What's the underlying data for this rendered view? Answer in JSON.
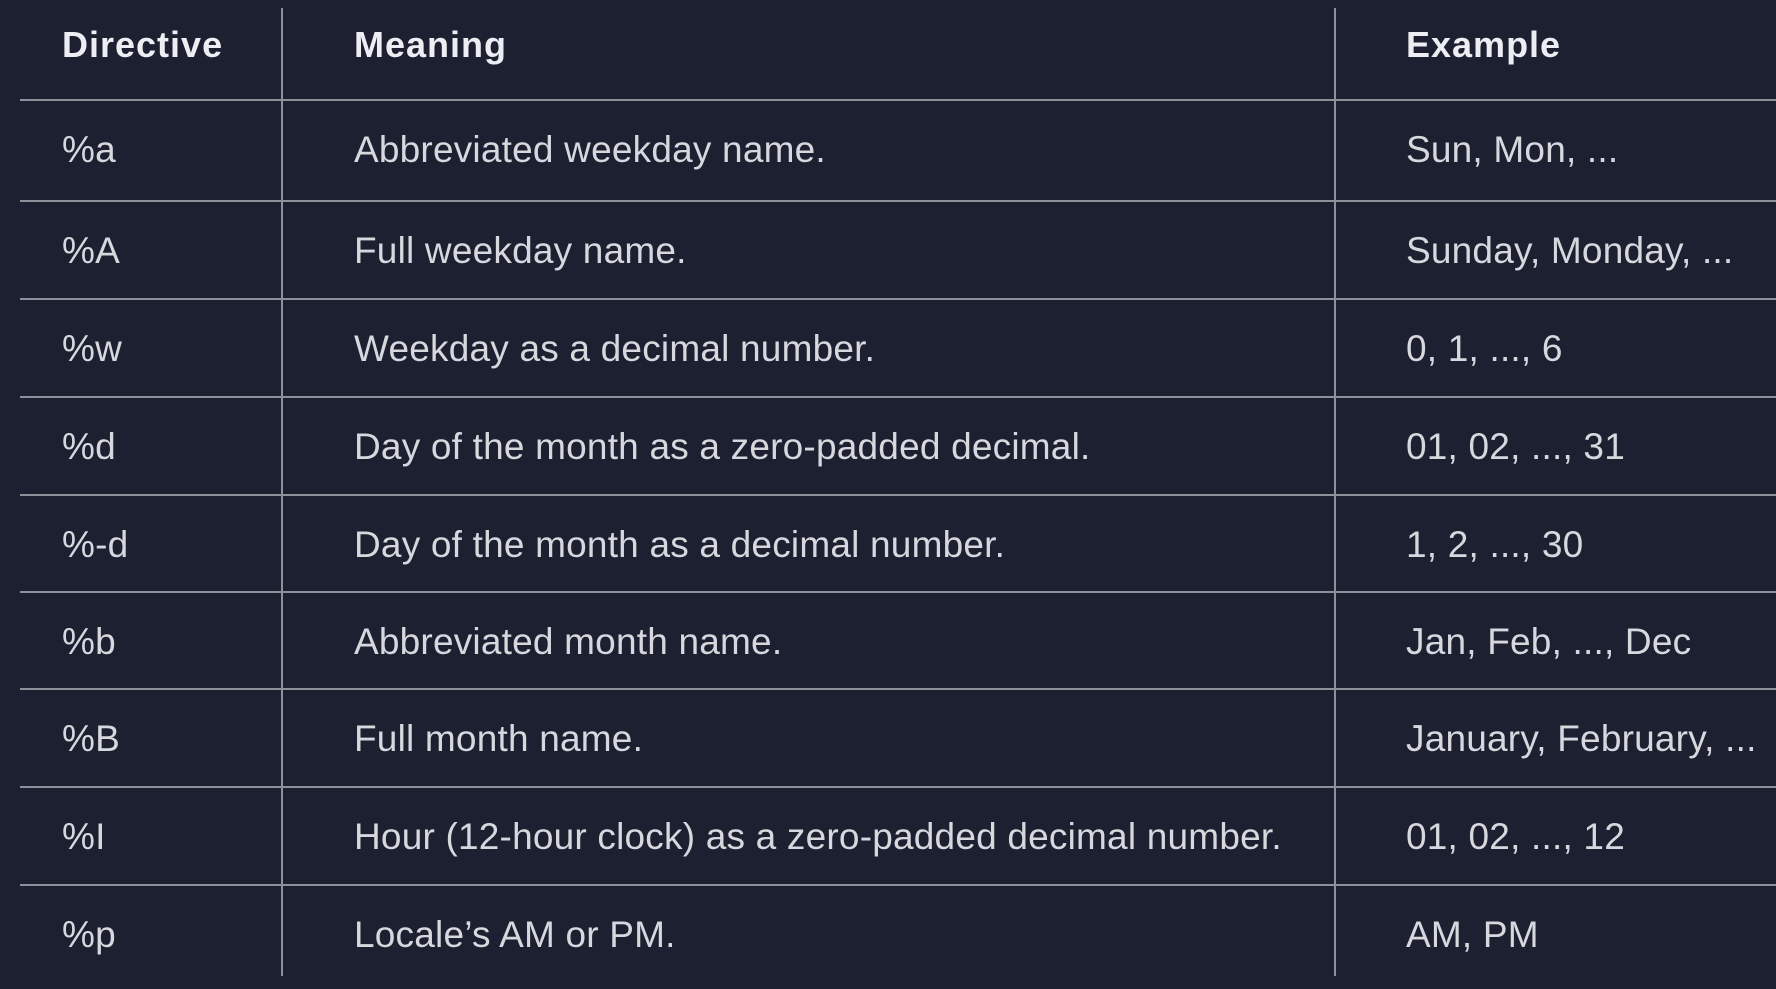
{
  "table": {
    "headers": {
      "directive": "Directive",
      "meaning": "Meaning",
      "example": "Example"
    },
    "rows": [
      {
        "directive": "%a",
        "meaning": "Abbreviated weekday name.",
        "example": "Sun, Mon, ..."
      },
      {
        "directive": "%A",
        "meaning": "Full weekday name.",
        "example": "Sunday, Monday, ..."
      },
      {
        "directive": "%w",
        "meaning": "Weekday as a decimal number.",
        "example": "0, 1, ..., 6"
      },
      {
        "directive": "%d",
        "meaning": "Day of the month as a zero-padded decimal.",
        "example": "01, 02, ..., 31"
      },
      {
        "directive": "%-d",
        "meaning": "Day of the month as a decimal number.",
        "example": "1, 2, ..., 30"
      },
      {
        "directive": "%b",
        "meaning": "Abbreviated month name.",
        "example": "Jan, Feb, ..., Dec"
      },
      {
        "directive": "%B",
        "meaning": "Full month name.",
        "example": "January, February, ..."
      },
      {
        "directive": "%I",
        "meaning": "Hour (12-hour clock) as a zero-padded decimal number.",
        "example": "01, 02, ..., 12"
      },
      {
        "directive": "%p",
        "meaning": "Locale’s AM or PM.",
        "example": "AM, PM"
      }
    ]
  },
  "colors": {
    "background": "#1c2030",
    "text": "#d6d8de",
    "header_text": "#eceef3",
    "grid_line": "#8e919a"
  }
}
